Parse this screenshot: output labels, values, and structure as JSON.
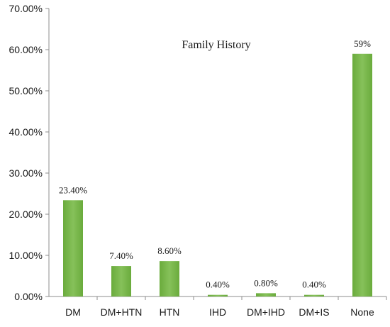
{
  "chart_data": {
    "type": "bar",
    "title": "Family History",
    "categories": [
      "DM",
      "DM+HTN",
      "HTN",
      "IHD",
      "DM+IHD",
      "DM+IS",
      "None"
    ],
    "values": [
      23.4,
      7.4,
      8.6,
      0.4,
      0.8,
      0.4,
      59
    ],
    "data_labels": [
      "23.40%",
      "7.40%",
      "8.60%",
      "0.40%",
      "0.80%",
      "0.40%",
      "59%"
    ],
    "y_ticks": [
      "0.00%",
      "10.00%",
      "20.00%",
      "30.00%",
      "40.00%",
      "50.00%",
      "60.00%",
      "70.00%"
    ],
    "ylim": [
      0,
      70
    ],
    "xlabel": "",
    "ylabel": "",
    "grid": false,
    "bar_color": "#6aab3c",
    "bar_color_light": "#86c15a"
  }
}
